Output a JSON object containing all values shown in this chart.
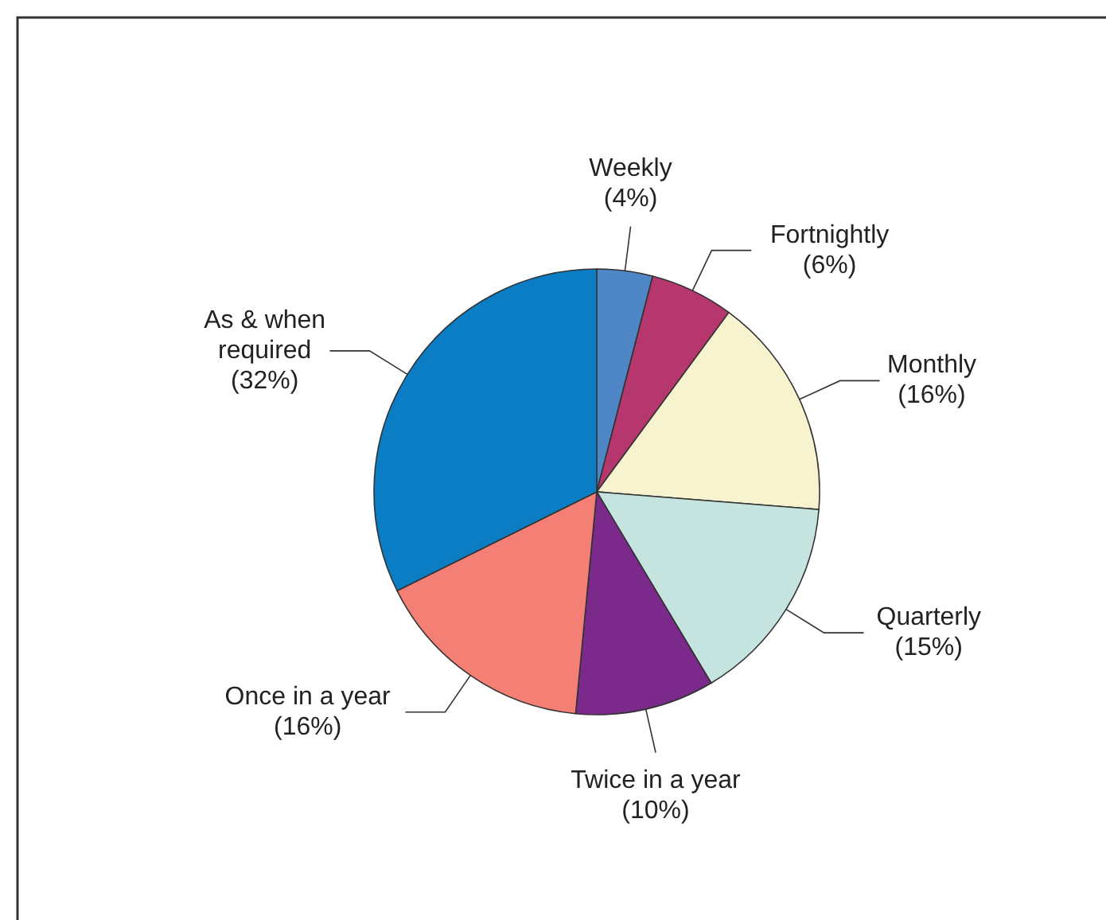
{
  "chart_data": {
    "type": "pie",
    "categories": [
      "Weekly",
      "Fortnightly",
      "Monthly",
      "Quarterly",
      "Twice in a year",
      "Once in a year",
      "As & when required"
    ],
    "values": [
      4,
      6,
      16,
      15,
      10,
      16,
      32
    ],
    "value_labels": [
      "(4%)",
      "(6%)",
      "(16%)",
      "(15%)",
      "(10%)",
      "(16%)",
      "(32%)"
    ],
    "colors": [
      "#4f86c6",
      "#b5376e",
      "#f8f3cf",
      "#c5e3df",
      "#7b2a8c",
      "#f47f74",
      "#0a7dc5"
    ]
  }
}
